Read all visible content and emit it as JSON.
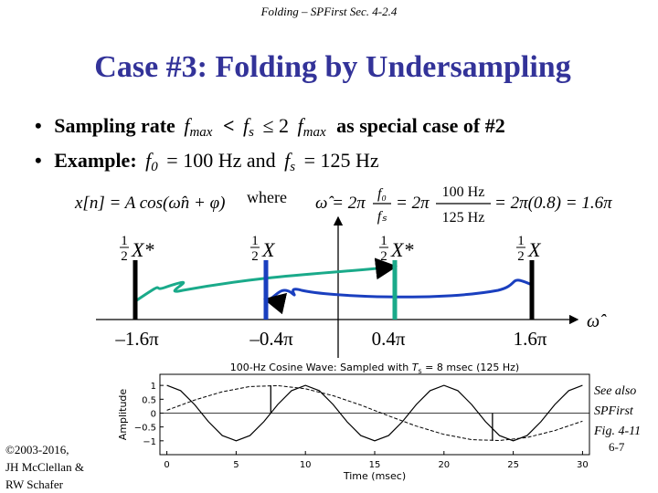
{
  "header": "Folding – SPFirst Sec. 4-2.4",
  "title": "Case #3: Folding by Undersampling",
  "bullets": [
    [
      "Sampling rate",
      "f",
      "max",
      "<",
      "f",
      "s",
      "≤ 2",
      "f",
      "max",
      "as special case of #2"
    ],
    [
      "Example:",
      "f",
      "0",
      "= 100 Hz and",
      "f",
      "s",
      "= 125 Hz"
    ]
  ],
  "equation": {
    "signal": "x[n] = A cos(ω̂n + φ)",
    "where": "where",
    "lhs": "ω̂ = 2π",
    "num1": "f₀",
    "den1": "fₛ",
    "eq2": "= 2π",
    "num2": "100 Hz",
    "den2": "125 Hz",
    "rest": "= 2π(0.8) = 1.6π"
  },
  "spectrum": {
    "axis_label": "ω̂",
    "lines": [
      {
        "coef_num": "1",
        "coef_den": "2",
        "label": "X*",
        "freq": "–1.6π"
      },
      {
        "coef_num": "1",
        "coef_den": "2",
        "label": "X",
        "freq": "–0.4π"
      },
      {
        "coef_num": "1",
        "coef_den": "2",
        "label": "X*",
        "freq": "0.4π"
      },
      {
        "coef_num": "1",
        "coef_den": "2",
        "label": "X",
        "freq": "1.6π"
      }
    ]
  },
  "plot": {
    "title": [
      "100-Hz Cosine Wave: Sampled with",
      "T",
      "s",
      "= 8 msec (125 Hz)"
    ],
    "xlabel": "Time (msec)",
    "ylabel": "Amplitude",
    "xlim": [
      -0.5,
      30.5
    ],
    "ylim": [
      -1.5,
      1.4
    ],
    "xticks": [
      0,
      5,
      10,
      15,
      20,
      25,
      30
    ],
    "yticks": [
      {
        "value": -1,
        "label": "−1"
      },
      {
        "value": -0.5,
        "label": "−0.5"
      },
      0,
      0.5,
      1
    ],
    "curves": [
      {
        "x": [
          0,
          1,
          2,
          3,
          4,
          5,
          6,
          7,
          8,
          9,
          10,
          11,
          12,
          13,
          14,
          15,
          16,
          17,
          18,
          19,
          20,
          21,
          22,
          23,
          24,
          25,
          26,
          27,
          28,
          29,
          30
        ],
        "values": [
          1,
          0.81,
          0.31,
          -0.31,
          -0.81,
          -1,
          -0.81,
          -0.31,
          0.31,
          0.81,
          1,
          0.81,
          0.31,
          -0.31,
          -0.81,
          -1,
          -0.81,
          -0.31,
          0.31,
          0.81,
          1,
          0.81,
          0.31,
          -0.31,
          -0.81,
          -1,
          -0.81,
          -0.31,
          0.31,
          0.81,
          1
        ]
      },
      {
        "x": [
          0,
          2,
          4,
          6,
          8,
          10,
          12,
          14,
          16,
          18,
          20,
          22,
          24,
          26,
          28,
          30
        ],
        "values": [
          0.1,
          0.47,
          0.77,
          0.96,
          0.99,
          0.88,
          0.63,
          0.29,
          -0.1,
          -0.47,
          -0.77,
          -0.96,
          -0.99,
          -0.88,
          -0.63,
          -0.29
        ]
      }
    ],
    "samples": {
      "x": [
        7.5,
        23.5
      ],
      "values": [
        1,
        -1
      ]
    }
  },
  "footer": {
    "copyright": [
      "©2003-2016,",
      "JH McClellan &",
      "RW Schafer"
    ],
    "see_also": [
      "See also",
      "SPFirst",
      "Fig. 4-11"
    ],
    "page": "6-7"
  }
}
